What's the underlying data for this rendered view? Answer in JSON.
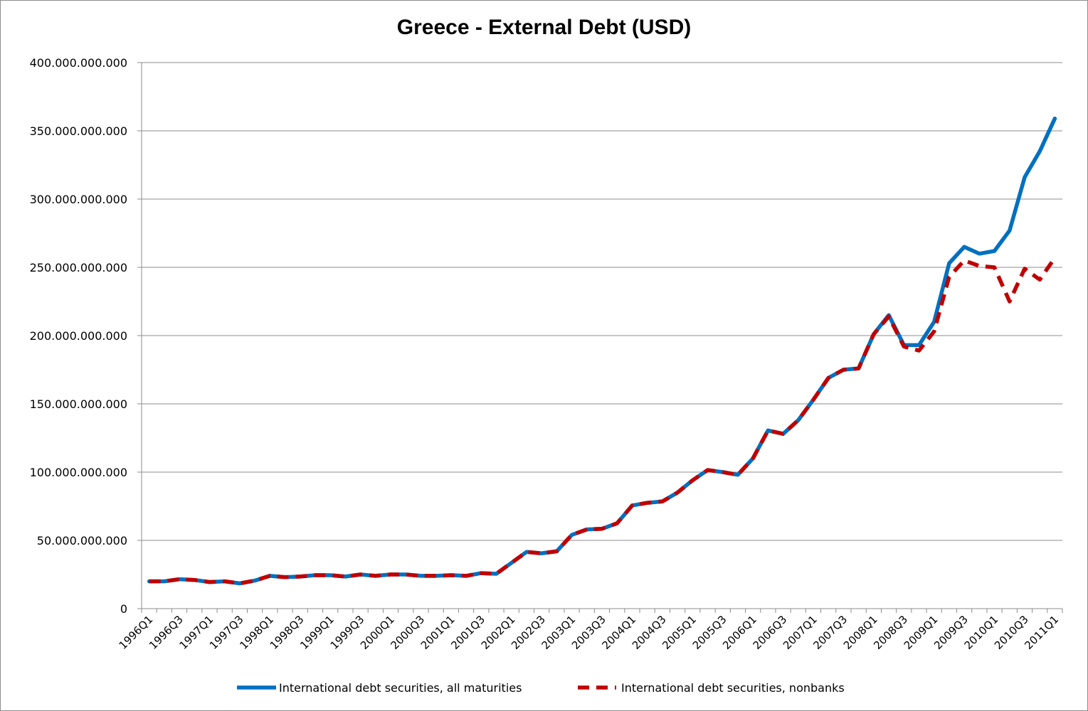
{
  "chart_data": {
    "type": "line",
    "title": "Greece - External Debt (USD)",
    "xlabel": "",
    "ylabel": "",
    "ylim": [
      0,
      400000000000
    ],
    "y_ticks": [
      0,
      50000000000,
      100000000000,
      150000000000,
      200000000000,
      250000000000,
      300000000000,
      350000000000,
      400000000000
    ],
    "y_tick_labels": [
      "0",
      "50.000.000.000",
      "100.000.000.000",
      "150.000.000.000",
      "200.000.000.000",
      "250.000.000.000",
      "300.000.000.000",
      "350.000.000.000",
      "400.000.000.000"
    ],
    "grid": "horizontal",
    "legend_position": "bottom",
    "categories": [
      "1996Q1",
      "1996Q2",
      "1996Q3",
      "1996Q4",
      "1997Q1",
      "1997Q2",
      "1997Q3",
      "1997Q4",
      "1998Q1",
      "1998Q2",
      "1998Q3",
      "1998Q4",
      "1999Q1",
      "1999Q2",
      "1999Q3",
      "1999Q4",
      "2000Q1",
      "2000Q2",
      "2000Q3",
      "2000Q4",
      "2001Q1",
      "2001Q2",
      "2001Q3",
      "2001Q4",
      "2002Q1",
      "2002Q2",
      "2002Q3",
      "2002Q4",
      "2003Q1",
      "2003Q2",
      "2003Q3",
      "2003Q4",
      "2004Q1",
      "2004Q2",
      "2004Q3",
      "2004Q4",
      "2005Q1",
      "2005Q2",
      "2005Q3",
      "2005Q4",
      "2006Q1",
      "2006Q2",
      "2006Q3",
      "2006Q4",
      "2007Q1",
      "2007Q2",
      "2007Q3",
      "2007Q4",
      "2008Q1",
      "2008Q2",
      "2008Q3",
      "2008Q4",
      "2009Q1",
      "2009Q2",
      "2009Q3",
      "2009Q4",
      "2010Q1",
      "2010Q2",
      "2010Q3",
      "2010Q4",
      "2011Q1"
    ],
    "x_tick_labels": [
      "1996Q1",
      "1996Q3",
      "1997Q1",
      "1997Q3",
      "1998Q1",
      "1998Q3",
      "1999Q1",
      "1999Q3",
      "2000Q1",
      "2000Q3",
      "2001Q1",
      "2001Q3",
      "2002Q1",
      "2002Q3",
      "2003Q1",
      "2003Q3",
      "2004Q1",
      "2004Q3",
      "2005Q1",
      "2005Q3",
      "2006Q1",
      "2006Q3",
      "2007Q1",
      "2007Q3",
      "2008Q1",
      "2008Q3",
      "2009Q1",
      "2009Q3",
      "2010Q1",
      "2010Q3",
      "2011Q1"
    ],
    "series": [
      {
        "name": "International debt securities, all maturities",
        "color": "#0070c0",
        "style": "solid",
        "values": [
          20000000000,
          20000000000,
          21500000000,
          21000000000,
          19500000000,
          20000000000,
          18500000000,
          20500000000,
          24000000000,
          23000000000,
          23500000000,
          24500000000,
          24500000000,
          23500000000,
          25000000000,
          24000000000,
          25000000000,
          25000000000,
          24000000000,
          24000000000,
          24500000000,
          24000000000,
          26000000000,
          25500000000,
          33500000000,
          41500000000,
          40500000000,
          42000000000,
          54000000000,
          58000000000,
          58500000000,
          62500000000,
          75500000000,
          77500000000,
          78500000000,
          85000000000,
          94000000000,
          101500000000,
          100000000000,
          98000000000,
          110000000000,
          130500000000,
          128000000000,
          138000000000,
          153000000000,
          169000000000,
          175000000000,
          176000000000,
          201000000000,
          215000000000,
          193000000000,
          193000000000,
          210000000000,
          253000000000,
          265000000000,
          260000000000,
          262000000000,
          277000000000,
          316000000000,
          335000000000,
          359000000000
        ]
      },
      {
        "name": "International debt securities, nonbanks",
        "color": "#c00000",
        "style": "dashed",
        "values": [
          20000000000,
          20000000000,
          21500000000,
          21000000000,
          19500000000,
          20000000000,
          18500000000,
          20500000000,
          24000000000,
          23000000000,
          23500000000,
          24500000000,
          24500000000,
          23500000000,
          25000000000,
          24000000000,
          25000000000,
          25000000000,
          24000000000,
          24000000000,
          24500000000,
          24000000000,
          26000000000,
          25500000000,
          33500000000,
          41500000000,
          40500000000,
          42000000000,
          54000000000,
          58000000000,
          58500000000,
          62500000000,
          75500000000,
          77500000000,
          78500000000,
          85000000000,
          94000000000,
          101500000000,
          100000000000,
          98000000000,
          110000000000,
          130500000000,
          128000000000,
          138000000000,
          153000000000,
          169000000000,
          175000000000,
          176000000000,
          201000000000,
          214000000000,
          192000000000,
          189000000000,
          203000000000,
          243000000000,
          255000000000,
          251000000000,
          250000000000,
          225000000000,
          249000000000,
          241000000000,
          257000000000
        ]
      }
    ]
  }
}
